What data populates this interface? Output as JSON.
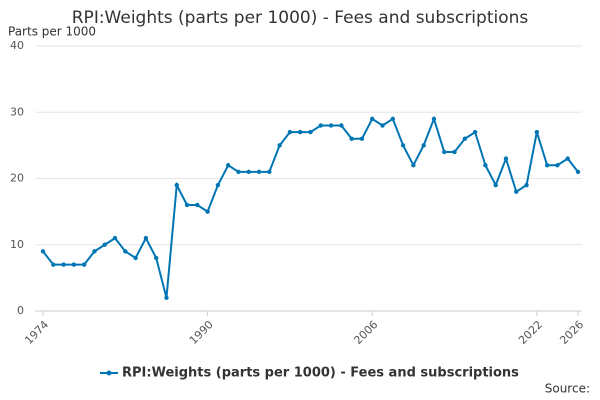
{
  "chart_data": {
    "type": "line",
    "title": "RPI:Weights (parts per 1000) - Fees and subscriptions",
    "y_label": "Parts per 1000",
    "source": "Source:",
    "x": [
      1974,
      1975,
      1976,
      1977,
      1978,
      1979,
      1980,
      1981,
      1982,
      1983,
      1984,
      1985,
      1986,
      1987,
      1988,
      1989,
      1990,
      1991,
      1992,
      1993,
      1994,
      1995,
      1996,
      1997,
      1998,
      1999,
      2000,
      2001,
      2002,
      2003,
      2004,
      2005,
      2006,
      2007,
      2008,
      2009,
      2010,
      2011,
      2012,
      2013,
      2014,
      2015,
      2016,
      2017,
      2018,
      2019,
      2020,
      2021,
      2022,
      2023,
      2024,
      2025,
      2026
    ],
    "series": [
      {
        "name": "RPI:Weights (parts per 1000) - Fees and subscriptions",
        "color": "#0075b4",
        "values": [
          9,
          7,
          7,
          7,
          7,
          9,
          10,
          11,
          9,
          8,
          11,
          8,
          2,
          19,
          16,
          16,
          15,
          19,
          22,
          21,
          21,
          21,
          21,
          25,
          27,
          27,
          27,
          28,
          28,
          28,
          26,
          26,
          29,
          28,
          29,
          25,
          22,
          25,
          29,
          24,
          24,
          26,
          27,
          22,
          19,
          23,
          18,
          19,
          27,
          22,
          22,
          23,
          21
        ]
      }
    ],
    "xlim": [
      1974,
      2026
    ],
    "xticks": [
      1974,
      1990,
      2006,
      2022,
      2026
    ],
    "ylim": [
      0,
      40
    ],
    "yticks": [
      0,
      10,
      20,
      30,
      40
    ],
    "grid": true,
    "legend": "bottom"
  }
}
